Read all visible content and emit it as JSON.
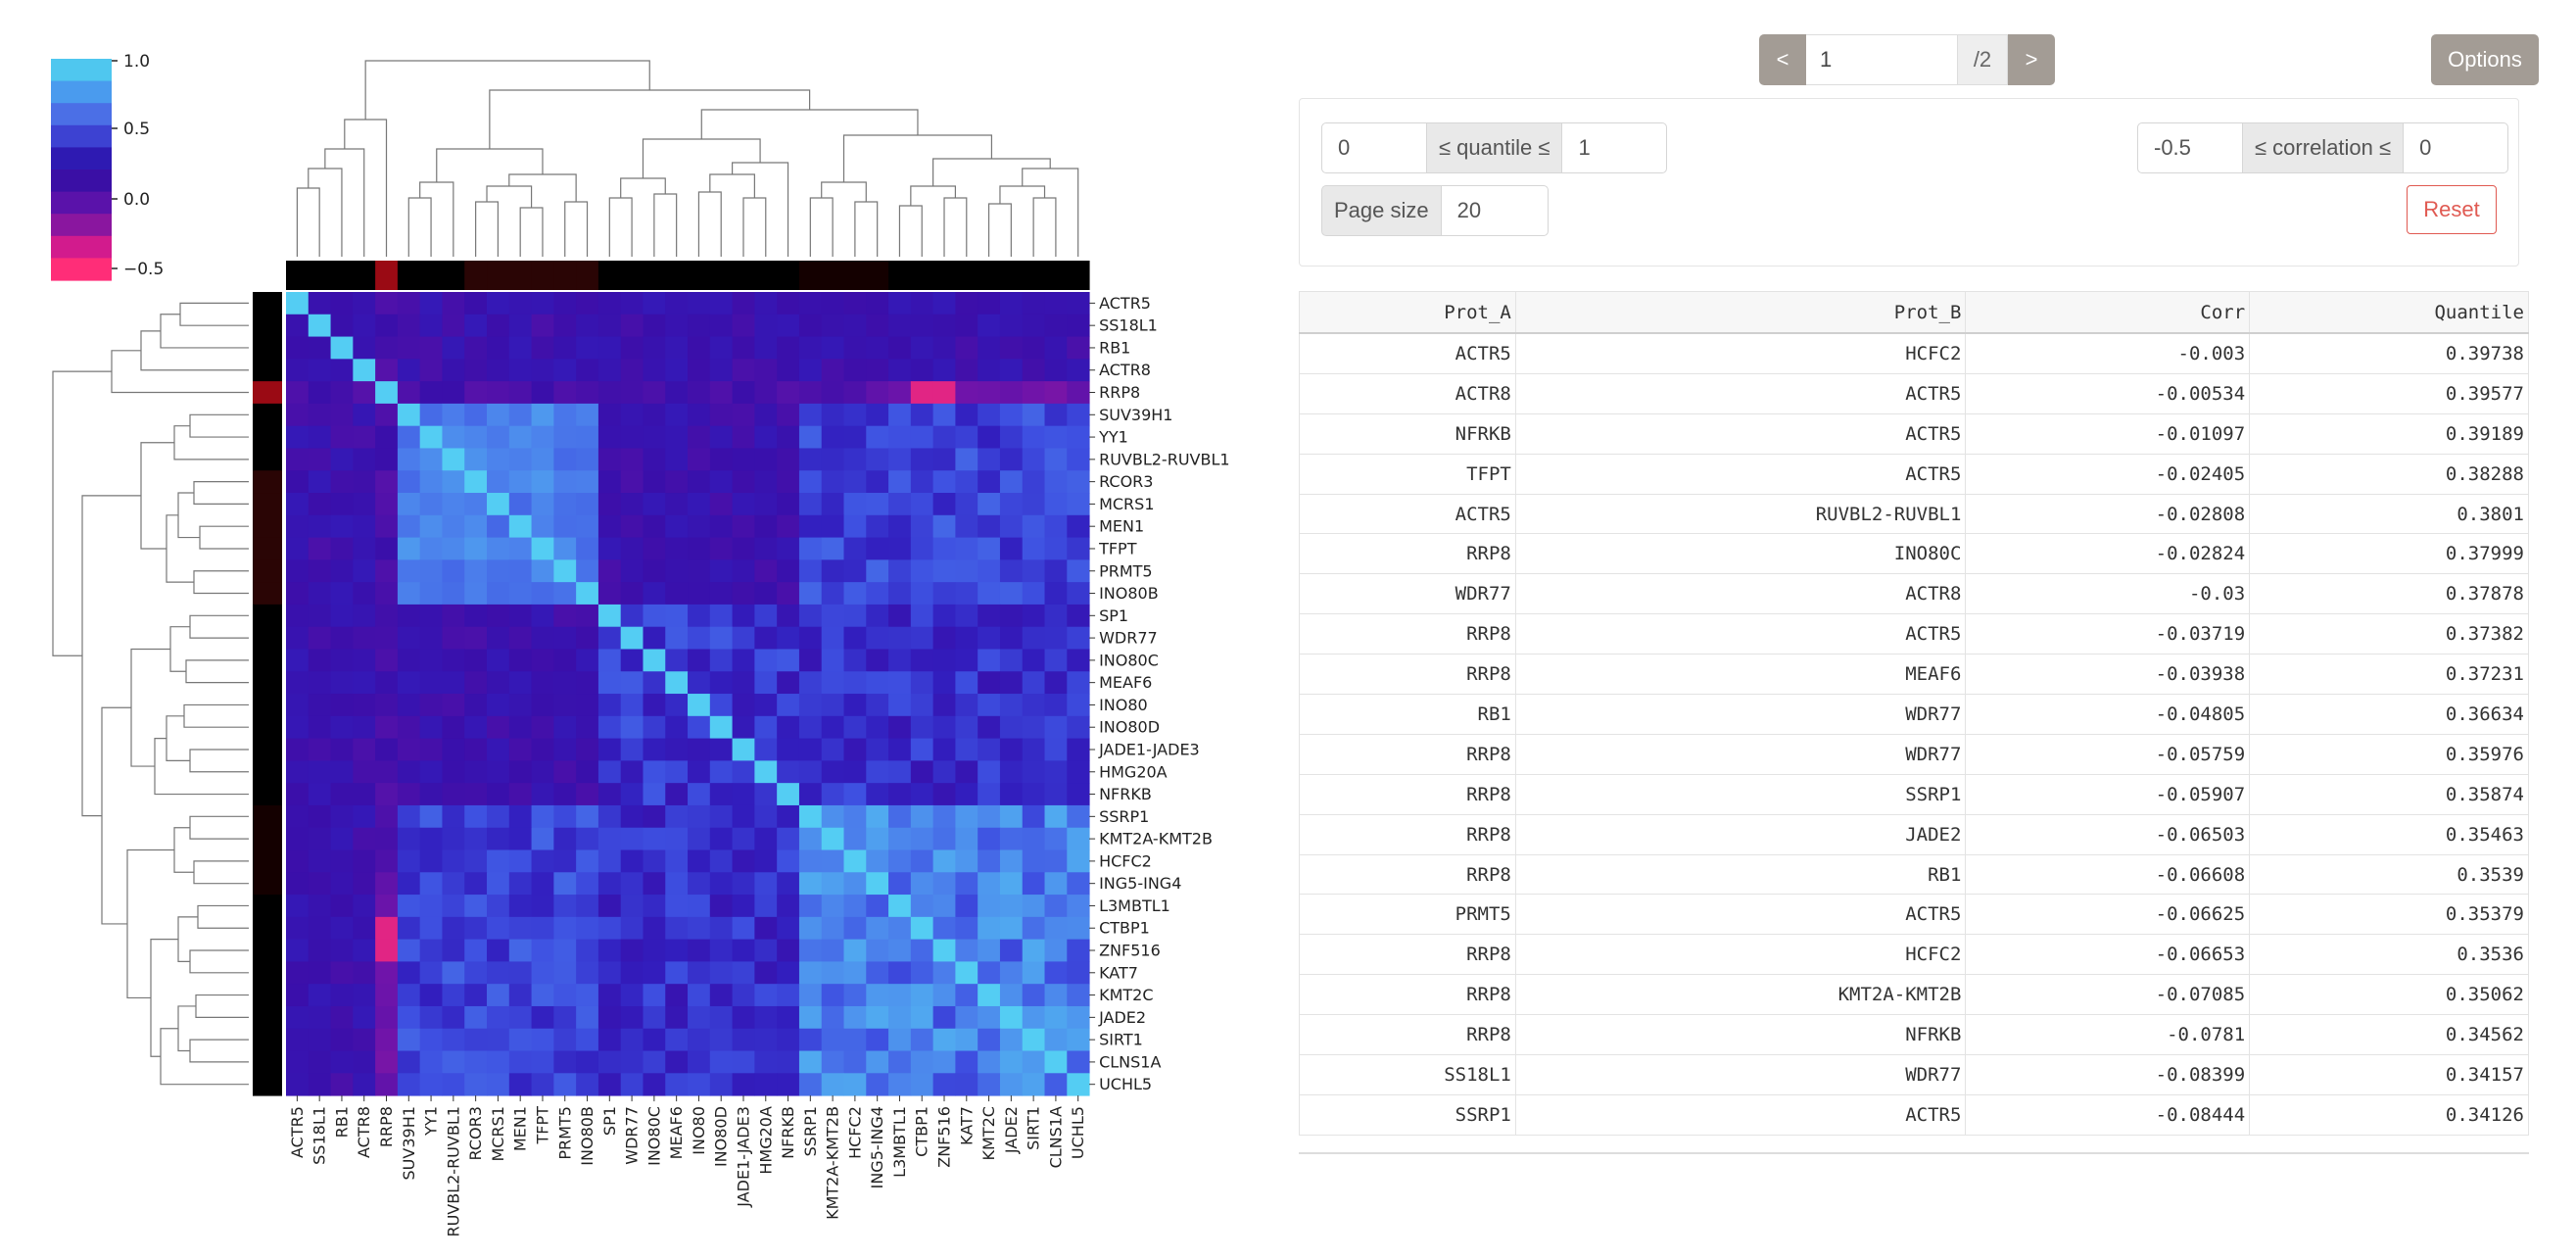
{
  "heatmap": {
    "labels": [
      "ACTR5",
      "SS18L1",
      "RB1",
      "ACTR8",
      "RRP8",
      "SUV39H1",
      "YY1",
      "RUVBL2-RUVBL1",
      "RCOR3",
      "MCRS1",
      "MEN1",
      "TFPT",
      "PRMT5",
      "INO80B",
      "SP1",
      "WDR77",
      "INO80C",
      "MEAF6",
      "INO80",
      "INO80D",
      "JADE1-JADE3",
      "HMG20A",
      "NFRKB",
      "SSRP1",
      "KMT2A-KMT2B",
      "HCFC2",
      "ING5-ING4",
      "L3MBTL1",
      "CTBP1",
      "ZNF516",
      "KAT7",
      "KMT2C",
      "JADE2",
      "SIRT1",
      "CLNS1A",
      "UCHL5"
    ],
    "colorbar": {
      "ticks": [
        "1.0",
        "0.5",
        "0.0",
        "−0.5"
      ],
      "colors": [
        "#4fc7ef",
        "#4a9bee",
        "#4b6fe6",
        "#3d42d2",
        "#2e1ab2",
        "#3a0fa5",
        "#5a12aa",
        "#8a169f",
        "#d21b8d",
        "#ff2d78"
      ]
    }
  },
  "pager": {
    "prev": "<",
    "page": "1",
    "total": "/2",
    "next": ">"
  },
  "options_label": "Options",
  "filters": {
    "quantile_min": "0",
    "quantile_label": "≤ quantile ≤",
    "quantile_max": "1",
    "corr_min": "-0.5",
    "corr_label": "≤ correlation ≤",
    "corr_max": "0",
    "page_size_label": "Page size",
    "page_size": "20",
    "reset_label": "Reset"
  },
  "table": {
    "columns": [
      "Prot_A",
      "Prot_B",
      "Corr",
      "Quantile"
    ],
    "rows": [
      [
        "ACTR5",
        "HCFC2",
        "-0.003",
        "0.39738"
      ],
      [
        "ACTR8",
        "ACTR5",
        "-0.00534",
        "0.39577"
      ],
      [
        "NFRKB",
        "ACTR5",
        "-0.01097",
        "0.39189"
      ],
      [
        "TFPT",
        "ACTR5",
        "-0.02405",
        "0.38288"
      ],
      [
        "ACTR5",
        "RUVBL2-RUVBL1",
        "-0.02808",
        "0.3801"
      ],
      [
        "RRP8",
        "INO80C",
        "-0.02824",
        "0.37999"
      ],
      [
        "WDR77",
        "ACTR8",
        "-0.03",
        "0.37878"
      ],
      [
        "RRP8",
        "ACTR5",
        "-0.03719",
        "0.37382"
      ],
      [
        "RRP8",
        "MEAF6",
        "-0.03938",
        "0.37231"
      ],
      [
        "RB1",
        "WDR77",
        "-0.04805",
        "0.36634"
      ],
      [
        "RRP8",
        "WDR77",
        "-0.05759",
        "0.35976"
      ],
      [
        "RRP8",
        "SSRP1",
        "-0.05907",
        "0.35874"
      ],
      [
        "RRP8",
        "JADE2",
        "-0.06503",
        "0.35463"
      ],
      [
        "RRP8",
        "RB1",
        "-0.06608",
        "0.3539"
      ],
      [
        "PRMT5",
        "ACTR5",
        "-0.06625",
        "0.35379"
      ],
      [
        "RRP8",
        "HCFC2",
        "-0.06653",
        "0.3536"
      ],
      [
        "RRP8",
        "KMT2A-KMT2B",
        "-0.07085",
        "0.35062"
      ],
      [
        "RRP8",
        "NFRKB",
        "-0.0781",
        "0.34562"
      ],
      [
        "SS18L1",
        "WDR77",
        "-0.08399",
        "0.34157"
      ],
      [
        "SSRP1",
        "ACTR5",
        "-0.08444",
        "0.34126"
      ]
    ]
  }
}
